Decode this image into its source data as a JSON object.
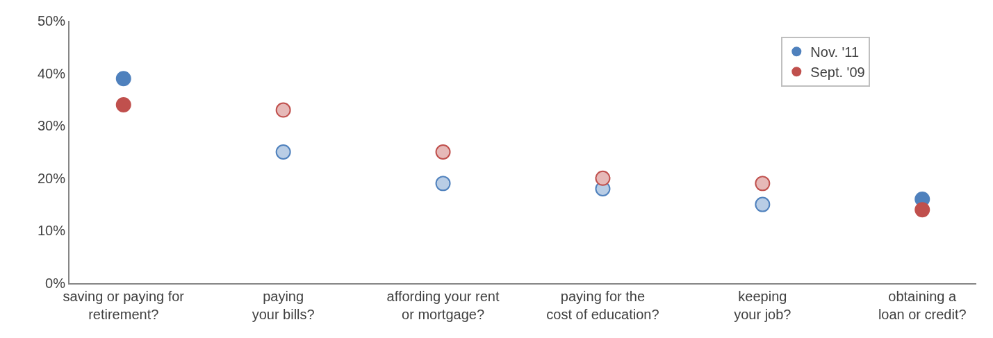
{
  "chart_data": {
    "type": "scatter",
    "categories": [
      "saving or paying for\nretirement?",
      "paying\nyour bills?",
      "affording your rent\nor mortgage?",
      "paying for the\ncost of education?",
      "keeping\nyour job?",
      "obtaining a\nloan or credit?"
    ],
    "series": [
      {
        "name": "Nov. '11",
        "color": "#4f81bd",
        "colors": [
          "#4f81bd",
          "#b9cde5",
          "#b9cde5",
          "#b9cde5",
          "#b9cde5",
          "#4f81bd"
        ],
        "values": [
          39,
          25,
          19,
          18,
          15,
          16
        ]
      },
      {
        "name": "Sept. '09",
        "color": "#c0504d",
        "colors": [
          "#c0504d",
          "#e6b9b8",
          "#e6b9b8",
          "#e6b9b8",
          "#e6b9b8",
          "#c0504d"
        ],
        "values": [
          34,
          33,
          25,
          20,
          19,
          14
        ]
      }
    ],
    "ylim": [
      0,
      50
    ],
    "yticks": [
      {
        "value": 0,
        "label": "0%"
      },
      {
        "value": 10,
        "label": "10%"
      },
      {
        "value": 20,
        "label": "20%"
      },
      {
        "value": 30,
        "label": "30%"
      },
      {
        "value": 40,
        "label": "40%"
      },
      {
        "value": 50,
        "label": "50%"
      }
    ],
    "legend": "top right",
    "marker": "circle"
  }
}
